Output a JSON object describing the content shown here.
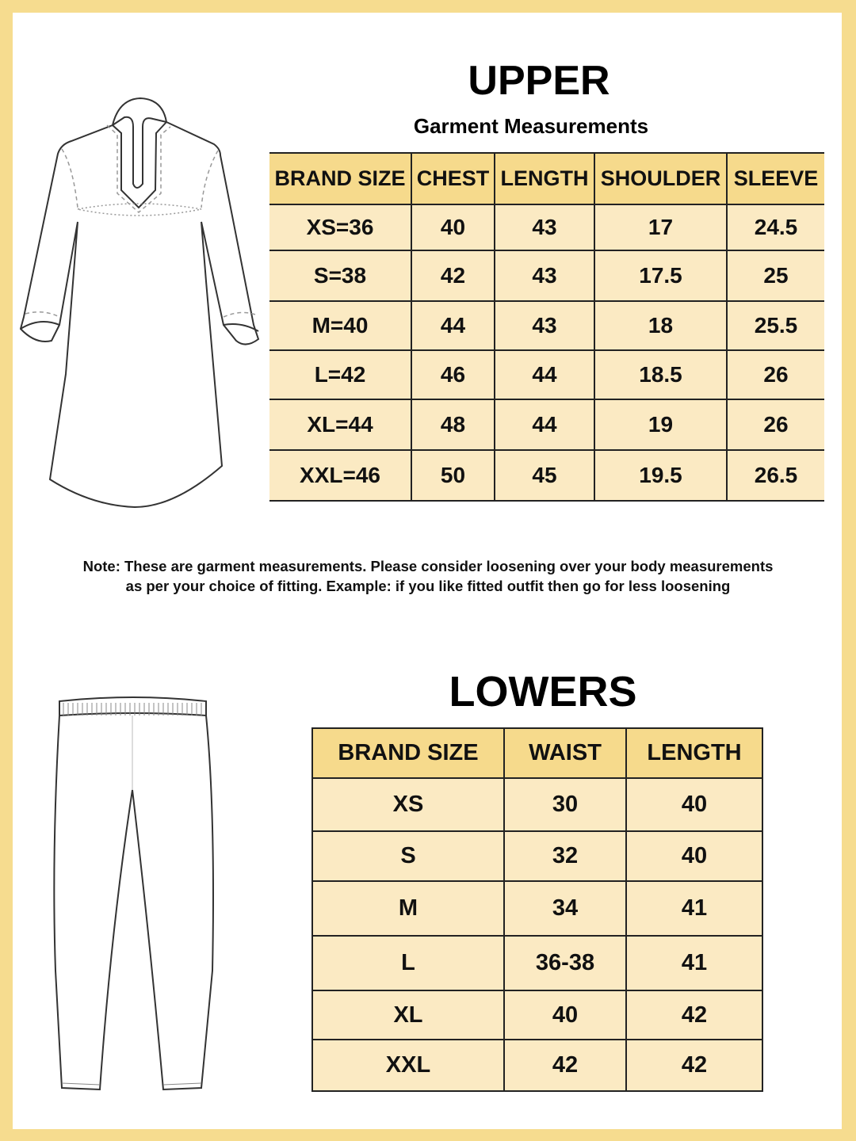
{
  "colors": {
    "border": "#f6dc8f",
    "header": "#f6da8c",
    "row": "#fbeac3"
  },
  "upper": {
    "title": "UPPER",
    "subtitle": "Garment Measurements",
    "headers": [
      "BRAND SIZE",
      "CHEST",
      "LENGTH",
      "SHOULDER",
      "SLEEVE"
    ],
    "rows": [
      [
        "XS=36",
        "40",
        "43",
        "17",
        "24.5"
      ],
      [
        "S=38",
        "42",
        "43",
        "17.5",
        "25"
      ],
      [
        "M=40",
        "44",
        "43",
        "18",
        "25.5"
      ],
      [
        "L=42",
        "46",
        "44",
        "18.5",
        "26"
      ],
      [
        "XL=44",
        "48",
        "44",
        "19",
        "26"
      ],
      [
        "XXL=46",
        "50",
        "45",
        "19.5",
        "26.5"
      ]
    ]
  },
  "note": {
    "line1": "Note: These are garment measurements. Please consider loosening over your body measurements",
    "line2": "as per your choice of fitting. Example: if you like fitted outfit then go for less loosening"
  },
  "lowers": {
    "title": "LOWERS",
    "headers": [
      "BRAND SIZE",
      "WAIST",
      "LENGTH"
    ],
    "rows": [
      [
        "XS",
        "30",
        "40"
      ],
      [
        "S",
        "32",
        "40"
      ],
      [
        "M",
        "34",
        "41"
      ],
      [
        "L",
        "36-38",
        "41"
      ],
      [
        "XL",
        "40",
        "42"
      ],
      [
        "XXL",
        "42",
        "42"
      ]
    ]
  }
}
